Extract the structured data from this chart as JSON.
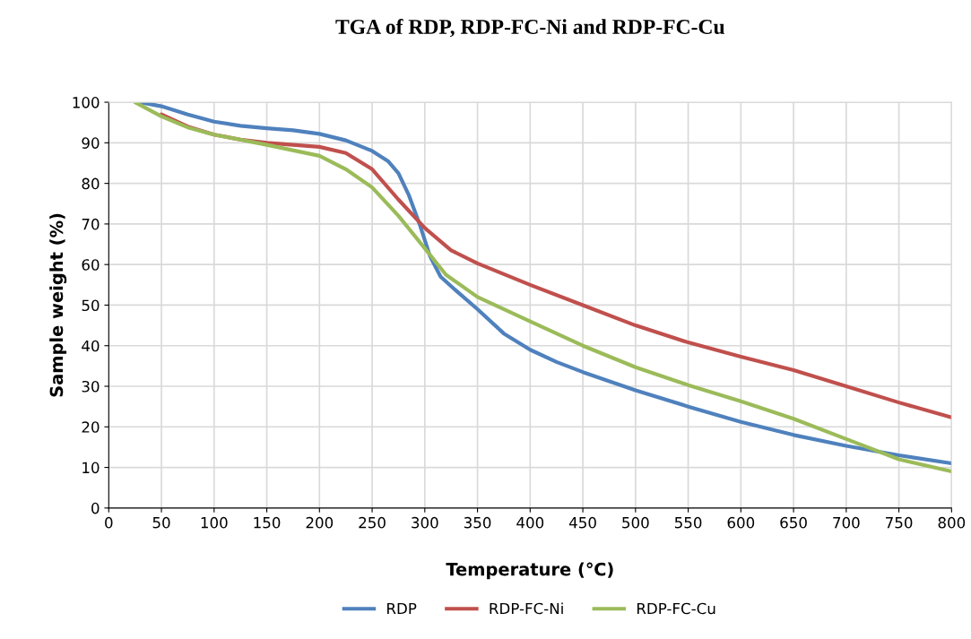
{
  "chart_data": {
    "type": "line",
    "title": "TGA of RDP, RDP-FC-Ni and RDP-FC-Cu",
    "xlabel": "Temperature (℃)",
    "ylabel": "Sample weight (%)",
    "xlim": [
      0,
      800
    ],
    "xticks": [
      0,
      50,
      100,
      150,
      200,
      250,
      300,
      350,
      400,
      450,
      500,
      550,
      600,
      650,
      700,
      750,
      800
    ],
    "ylim": [
      0,
      100
    ],
    "yticks": [
      0,
      10,
      20,
      30,
      40,
      50,
      60,
      70,
      80,
      90,
      100
    ],
    "grid": true,
    "legend": "bottom",
    "marker": "none",
    "line_style": "solid",
    "series": [
      {
        "name": "RDP",
        "color": "#4f81bd",
        "x": [
          30,
          50,
          75,
          100,
          125,
          150,
          175,
          200,
          225,
          250,
          265,
          275,
          285,
          295,
          305,
          315,
          330,
          350,
          375,
          400,
          425,
          450,
          500,
          550,
          600,
          650,
          700,
          750,
          800
        ],
        "values": [
          100,
          99,
          97,
          95.2,
          94.2,
          93.6,
          93.1,
          92.2,
          90.6,
          88,
          85.5,
          82.5,
          77,
          70,
          62,
          57,
          53.5,
          49,
          43,
          39,
          36,
          33.5,
          29,
          25,
          21.2,
          18,
          15.3,
          13,
          11
        ]
      },
      {
        "name": "RDP-FC-Ni",
        "color": "#c0504d",
        "x": [
          50,
          75,
          100,
          125,
          150,
          200,
          225,
          250,
          275,
          300,
          325,
          350,
          400,
          450,
          500,
          550,
          600,
          650,
          700,
          750,
          800
        ],
        "values": [
          97,
          94,
          92,
          90.8,
          90,
          89,
          87.5,
          83.5,
          76,
          69,
          63.5,
          60.3,
          55,
          50,
          45,
          40.8,
          37.3,
          34,
          30,
          26,
          22.3
        ]
      },
      {
        "name": "RDP-FC-Cu",
        "color": "#9bbb59",
        "x": [
          25,
          50,
          75,
          100,
          150,
          200,
          225,
          250,
          275,
          300,
          320,
          350,
          400,
          450,
          500,
          550,
          600,
          650,
          700,
          750,
          800
        ],
        "values": [
          100,
          96.5,
          93.8,
          92,
          89.5,
          86.8,
          83.5,
          79,
          72,
          64,
          57.5,
          52,
          46,
          40,
          34.7,
          30.3,
          26.3,
          22,
          17,
          12,
          9
        ]
      }
    ]
  }
}
